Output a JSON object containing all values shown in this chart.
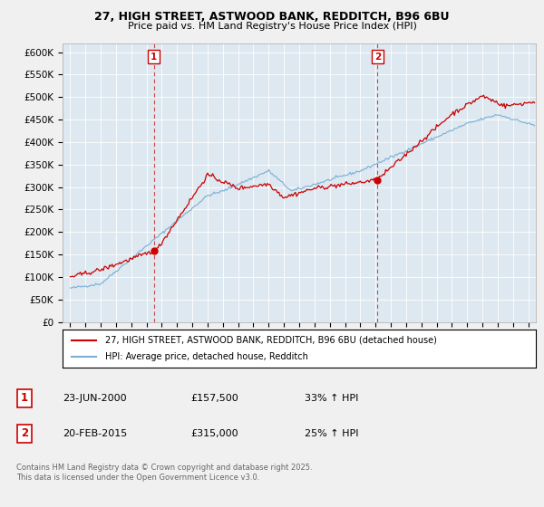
{
  "title_line1": "27, HIGH STREET, ASTWOOD BANK, REDDITCH, B96 6BU",
  "title_line2": "Price paid vs. HM Land Registry's House Price Index (HPI)",
  "legend_label_red": "27, HIGH STREET, ASTWOOD BANK, REDDITCH, B96 6BU (detached house)",
  "legend_label_blue": "HPI: Average price, detached house, Redditch",
  "footer": "Contains HM Land Registry data © Crown copyright and database right 2025.\nThis data is licensed under the Open Government Licence v3.0.",
  "transaction1": {
    "label": "1",
    "date": "23-JUN-2000",
    "price": "£157,500",
    "pct": "33% ↑ HPI",
    "x_year": 2000.48,
    "y_val": 157500
  },
  "transaction2": {
    "label": "2",
    "date": "20-FEB-2015",
    "price": "£315,000",
    "pct": "25% ↑ HPI",
    "x_year": 2015.13,
    "y_val": 315000
  },
  "ylim": [
    0,
    620000
  ],
  "xlim": [
    1994.5,
    2025.5
  ],
  "yticks": [
    0,
    50000,
    100000,
    150000,
    200000,
    250000,
    300000,
    350000,
    400000,
    450000,
    500000,
    550000,
    600000
  ],
  "ytick_labels": [
    "£0",
    "£50K",
    "£100K",
    "£150K",
    "£200K",
    "£250K",
    "£300K",
    "£350K",
    "£400K",
    "£450K",
    "£500K",
    "£550K",
    "£600K"
  ],
  "red_color": "#cc0000",
  "blue_color": "#7aafd4",
  "vline_color": "#cc0000",
  "background_color": "#f0f0f0",
  "plot_bg_color": "#dde8f0",
  "grid_color": "#ffffff",
  "title_fontsize": 9.5,
  "subtitle_fontsize": 8.5
}
